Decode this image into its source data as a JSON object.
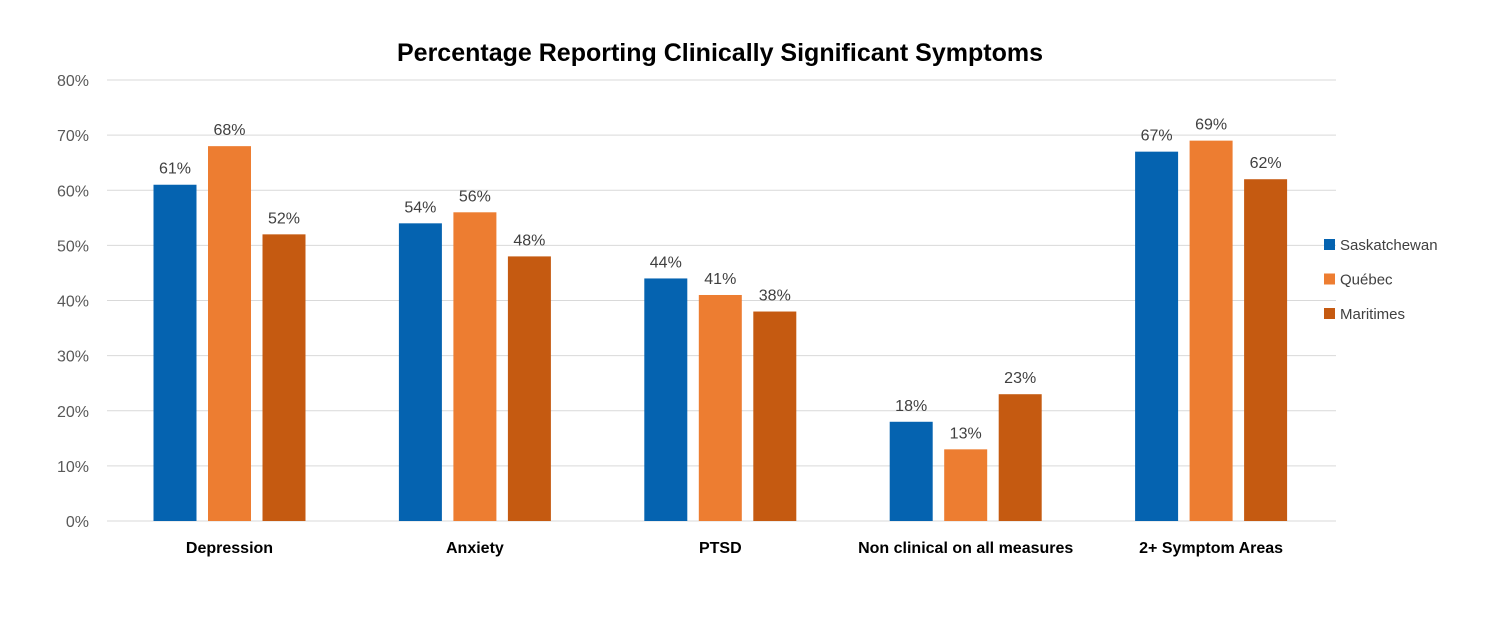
{
  "chart_data": {
    "type": "bar",
    "title": "Percentage Reporting Clinically Significant Symptoms",
    "categories": [
      "Depression",
      "Anxiety",
      "PTSD",
      "Non clinical on all measures",
      "2+ Symptom Areas"
    ],
    "series": [
      {
        "name": "Saskatchewan",
        "color": "#0563b0",
        "values": [
          61,
          54,
          44,
          18,
          67
        ]
      },
      {
        "name": "Québec",
        "color": "#ed7d31",
        "values": [
          68,
          56,
          41,
          13,
          69
        ]
      },
      {
        "name": "Maritimes",
        "color": "#c55a11",
        "values": [
          52,
          48,
          38,
          23,
          62
        ]
      }
    ],
    "ylim": [
      0,
      80
    ],
    "yticks": [
      0,
      10,
      20,
      30,
      40,
      50,
      60,
      70,
      80
    ],
    "yticklabels": [
      "0%",
      "10%",
      "20%",
      "30%",
      "40%",
      "50%",
      "60%",
      "70%",
      "80%"
    ],
    "value_suffix": "%",
    "grid": true,
    "legend_position": "right"
  }
}
